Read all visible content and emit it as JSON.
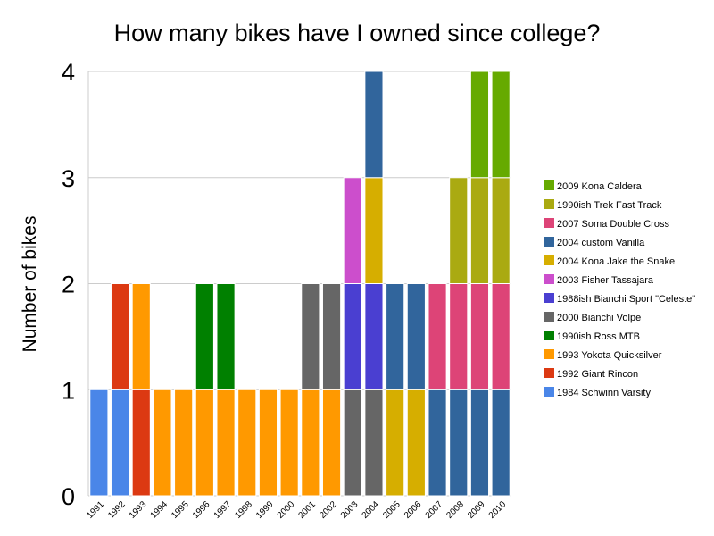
{
  "chart_data": {
    "type": "bar",
    "stacked": true,
    "title": "How many bikes have I owned since college?",
    "xlabel": "",
    "ylabel": "Number of bikes",
    "ylim": [
      0,
      4
    ],
    "yticks": [
      "0",
      "1",
      "2",
      "3",
      "4"
    ],
    "grid": true,
    "legend_position": "right",
    "categories": [
      "1991",
      "1992",
      "1993",
      "1994",
      "1995",
      "1996",
      "1997",
      "1998",
      "1999",
      "2000",
      "2001",
      "2002",
      "2003",
      "2004",
      "2005",
      "2006",
      "2007",
      "2008",
      "2009",
      "2010"
    ],
    "series": [
      {
        "name": "1984 Schwinn Varsity",
        "color": "#4a86e8",
        "values": [
          1,
          1,
          0,
          0,
          0,
          0,
          0,
          0,
          0,
          0,
          0,
          0,
          0,
          0,
          0,
          0,
          0,
          0,
          0,
          0
        ]
      },
      {
        "name": "1992 Giant Rincon",
        "color": "#dc3912",
        "values": [
          0,
          1,
          1,
          0,
          0,
          0,
          0,
          0,
          0,
          0,
          0,
          0,
          0,
          0,
          0,
          0,
          0,
          0,
          0,
          0
        ]
      },
      {
        "name": "1993 Yokota Quicksilver",
        "color": "#ff9900",
        "values": [
          0,
          0,
          1,
          1,
          1,
          1,
          1,
          1,
          1,
          1,
          1,
          1,
          0,
          0,
          0,
          0,
          0,
          0,
          0,
          0
        ]
      },
      {
        "name": "1990ish Ross MTB",
        "color": "#008000",
        "values": [
          0,
          0,
          0,
          0,
          0,
          1,
          1,
          0,
          0,
          0,
          0,
          0,
          0,
          0,
          0,
          0,
          0,
          0,
          0,
          0
        ]
      },
      {
        "name": "2000 Bianchi Volpe",
        "color": "#666666",
        "values": [
          0,
          0,
          0,
          0,
          0,
          0,
          0,
          0,
          0,
          0,
          1,
          1,
          1,
          1,
          0,
          0,
          0,
          0,
          0,
          0
        ]
      },
      {
        "name": "1988ish Bianchi Sport \"Celeste\"",
        "color": "#4a3fd1",
        "values": [
          0,
          0,
          0,
          0,
          0,
          0,
          0,
          0,
          0,
          0,
          0,
          0,
          1,
          1,
          0,
          0,
          0,
          0,
          0,
          0
        ]
      },
      {
        "name": "2003 Fisher Tassajara",
        "color": "#cc4ecc",
        "values": [
          0,
          0,
          0,
          0,
          0,
          0,
          0,
          0,
          0,
          0,
          0,
          0,
          1,
          0,
          0,
          0,
          0,
          0,
          0,
          0
        ]
      },
      {
        "name": "2004 Kona Jake the Snake",
        "color": "#d6ae00",
        "values": [
          0,
          0,
          0,
          0,
          0,
          0,
          0,
          0,
          0,
          0,
          0,
          0,
          0,
          1,
          1,
          1,
          0,
          0,
          0,
          0
        ]
      },
      {
        "name": "2004 custom Vanilla",
        "color": "#31659c",
        "values": [
          0,
          0,
          0,
          0,
          0,
          0,
          0,
          0,
          0,
          0,
          0,
          0,
          0,
          1,
          1,
          1,
          1,
          1,
          1,
          1
        ]
      },
      {
        "name": "2007 Soma Double Cross",
        "color": "#dd4477",
        "values": [
          0,
          0,
          0,
          0,
          0,
          0,
          0,
          0,
          0,
          0,
          0,
          0,
          0,
          0,
          0,
          0,
          1,
          1,
          1,
          1
        ]
      },
      {
        "name": "1990ish Trek Fast Track",
        "color": "#aaaa11",
        "values": [
          0,
          0,
          0,
          0,
          0,
          0,
          0,
          0,
          0,
          0,
          0,
          0,
          0,
          0,
          0,
          0,
          0,
          1,
          1,
          1
        ]
      },
      {
        "name": "2009 Kona Caldera",
        "color": "#66aa00",
        "values": [
          0,
          0,
          0,
          0,
          0,
          0,
          0,
          0,
          0,
          0,
          0,
          0,
          0,
          0,
          0,
          0,
          0,
          0,
          1,
          1
        ]
      }
    ]
  }
}
